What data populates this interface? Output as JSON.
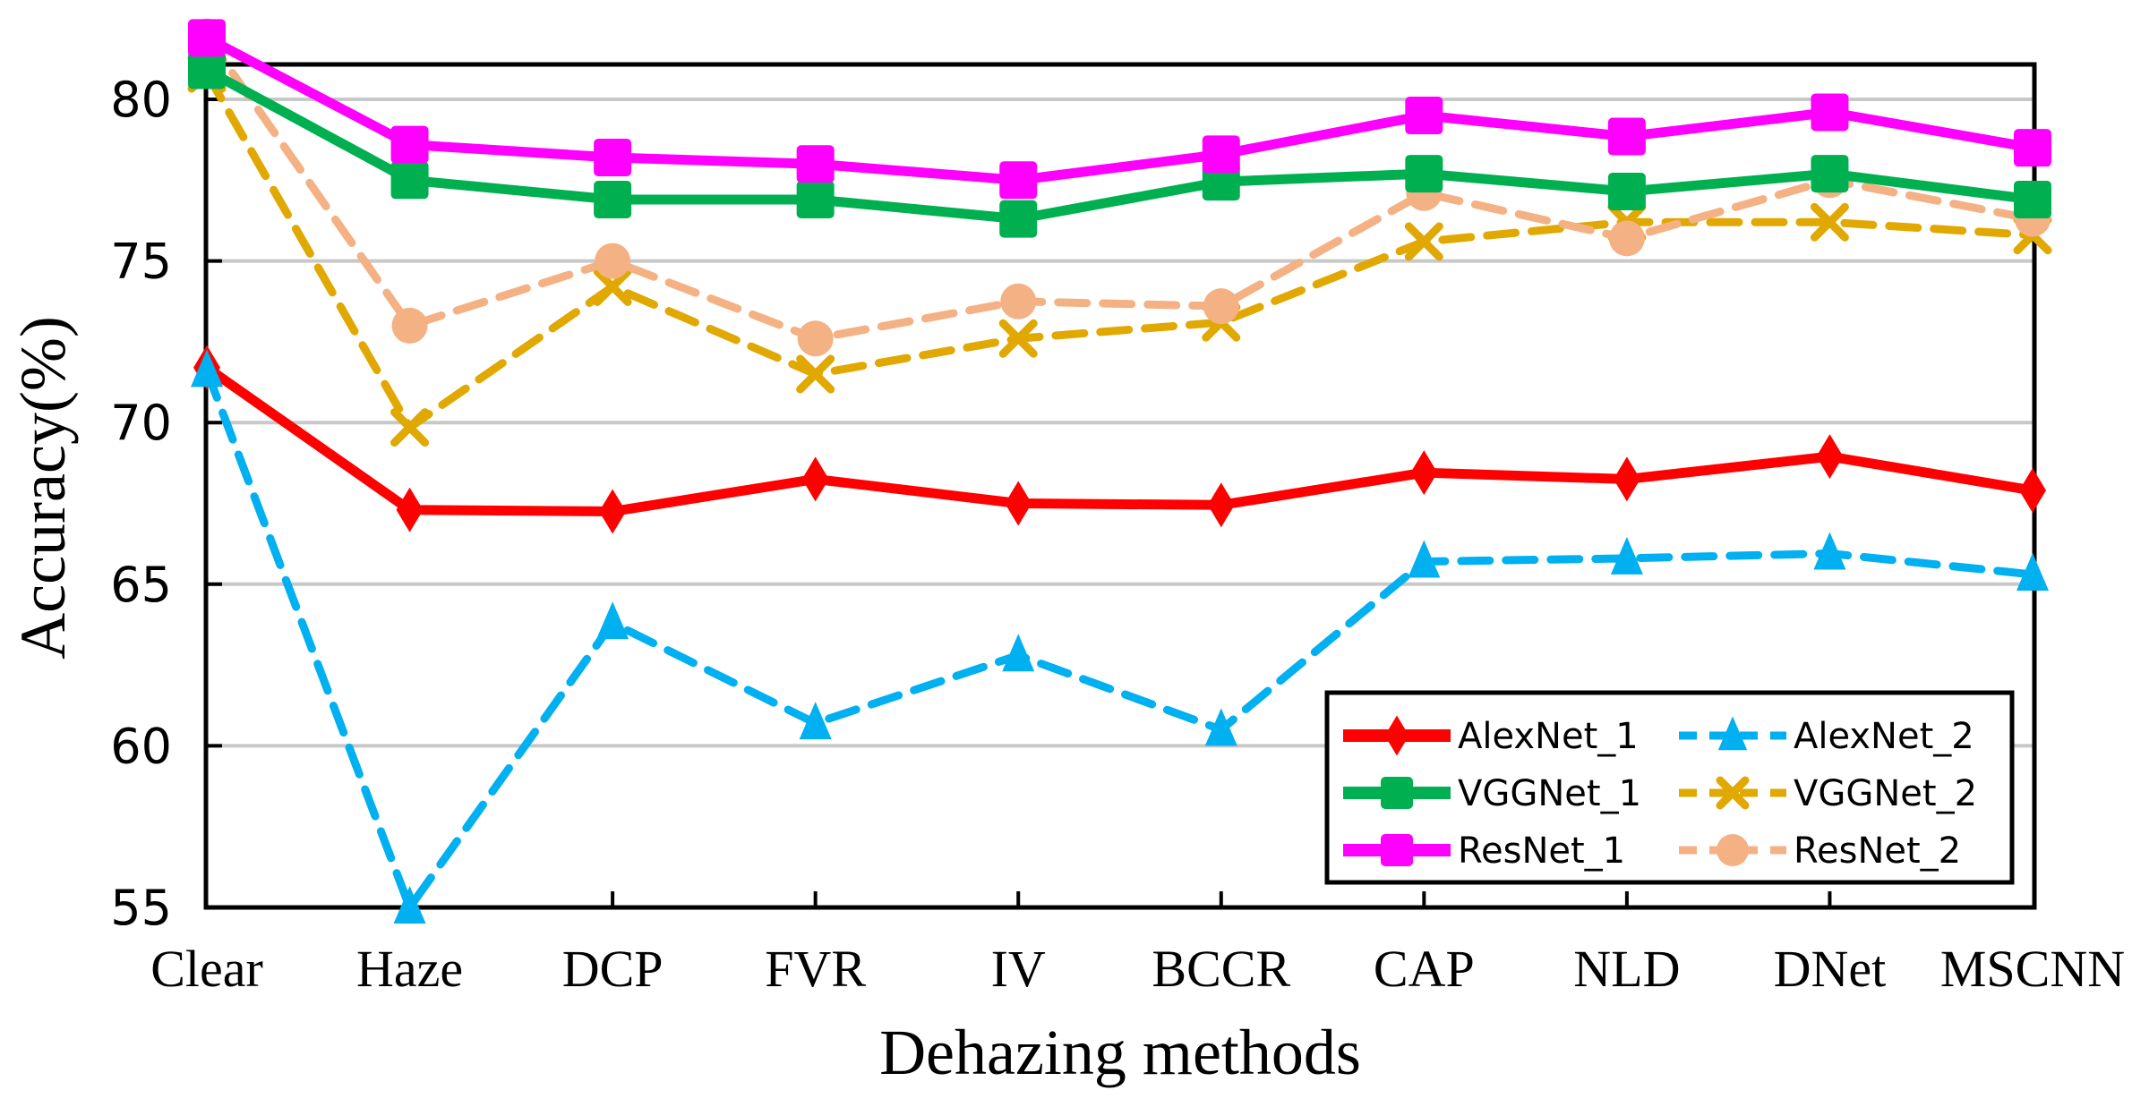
{
  "chart_data": {
    "type": "line",
    "title": "",
    "xlabel": "Dehazing methods",
    "ylabel": "Accuracy(%)",
    "ylim": [
      55,
      82
    ],
    "yticks": [
      55,
      60,
      65,
      70,
      75,
      80
    ],
    "grid": true,
    "legend_position": "bottom-right",
    "categories": [
      "Clear",
      "Haze",
      "DCP",
      "FVR",
      "IV",
      "BCCR",
      "CAP",
      "NLD",
      "DNet",
      "MSCNN"
    ],
    "series": [
      {
        "name": "AlexNet_1",
        "color": "#ff0000",
        "dashed": false,
        "marker": "diamond",
        "values": [
          71.7,
          67.3,
          67.25,
          68.25,
          67.5,
          67.45,
          68.45,
          68.25,
          68.95,
          67.9
        ]
      },
      {
        "name": "AlexNet_2",
        "color": "#00b0f0",
        "dashed": true,
        "marker": "triangle",
        "values": [
          71.6,
          55.0,
          63.8,
          60.7,
          62.8,
          60.5,
          65.7,
          65.8,
          65.95,
          65.3
        ]
      },
      {
        "name": "VGGNet_1",
        "color": "#00b050",
        "dashed": false,
        "marker": "square",
        "values": [
          80.9,
          77.5,
          76.9,
          76.9,
          76.3,
          77.45,
          77.7,
          77.15,
          77.7,
          76.9
        ]
      },
      {
        "name": "VGGNet_2",
        "color": "#e0a800",
        "dashed": true,
        "marker": "x",
        "values": [
          80.8,
          69.85,
          74.2,
          71.5,
          72.6,
          73.1,
          75.6,
          76.2,
          76.2,
          75.8
        ]
      },
      {
        "name": "ResNet_1",
        "color": "#ff00ff",
        "dashed": false,
        "marker": "square",
        "values": [
          81.9,
          78.6,
          78.2,
          78.0,
          77.5,
          78.3,
          79.5,
          78.85,
          79.6,
          78.5
        ]
      },
      {
        "name": "ResNet_2",
        "color": "#f4b183",
        "dashed": true,
        "marker": "circle",
        "values": [
          81.95,
          73.0,
          75.0,
          72.6,
          73.75,
          73.6,
          77.1,
          75.7,
          77.5,
          76.3
        ]
      }
    ]
  }
}
